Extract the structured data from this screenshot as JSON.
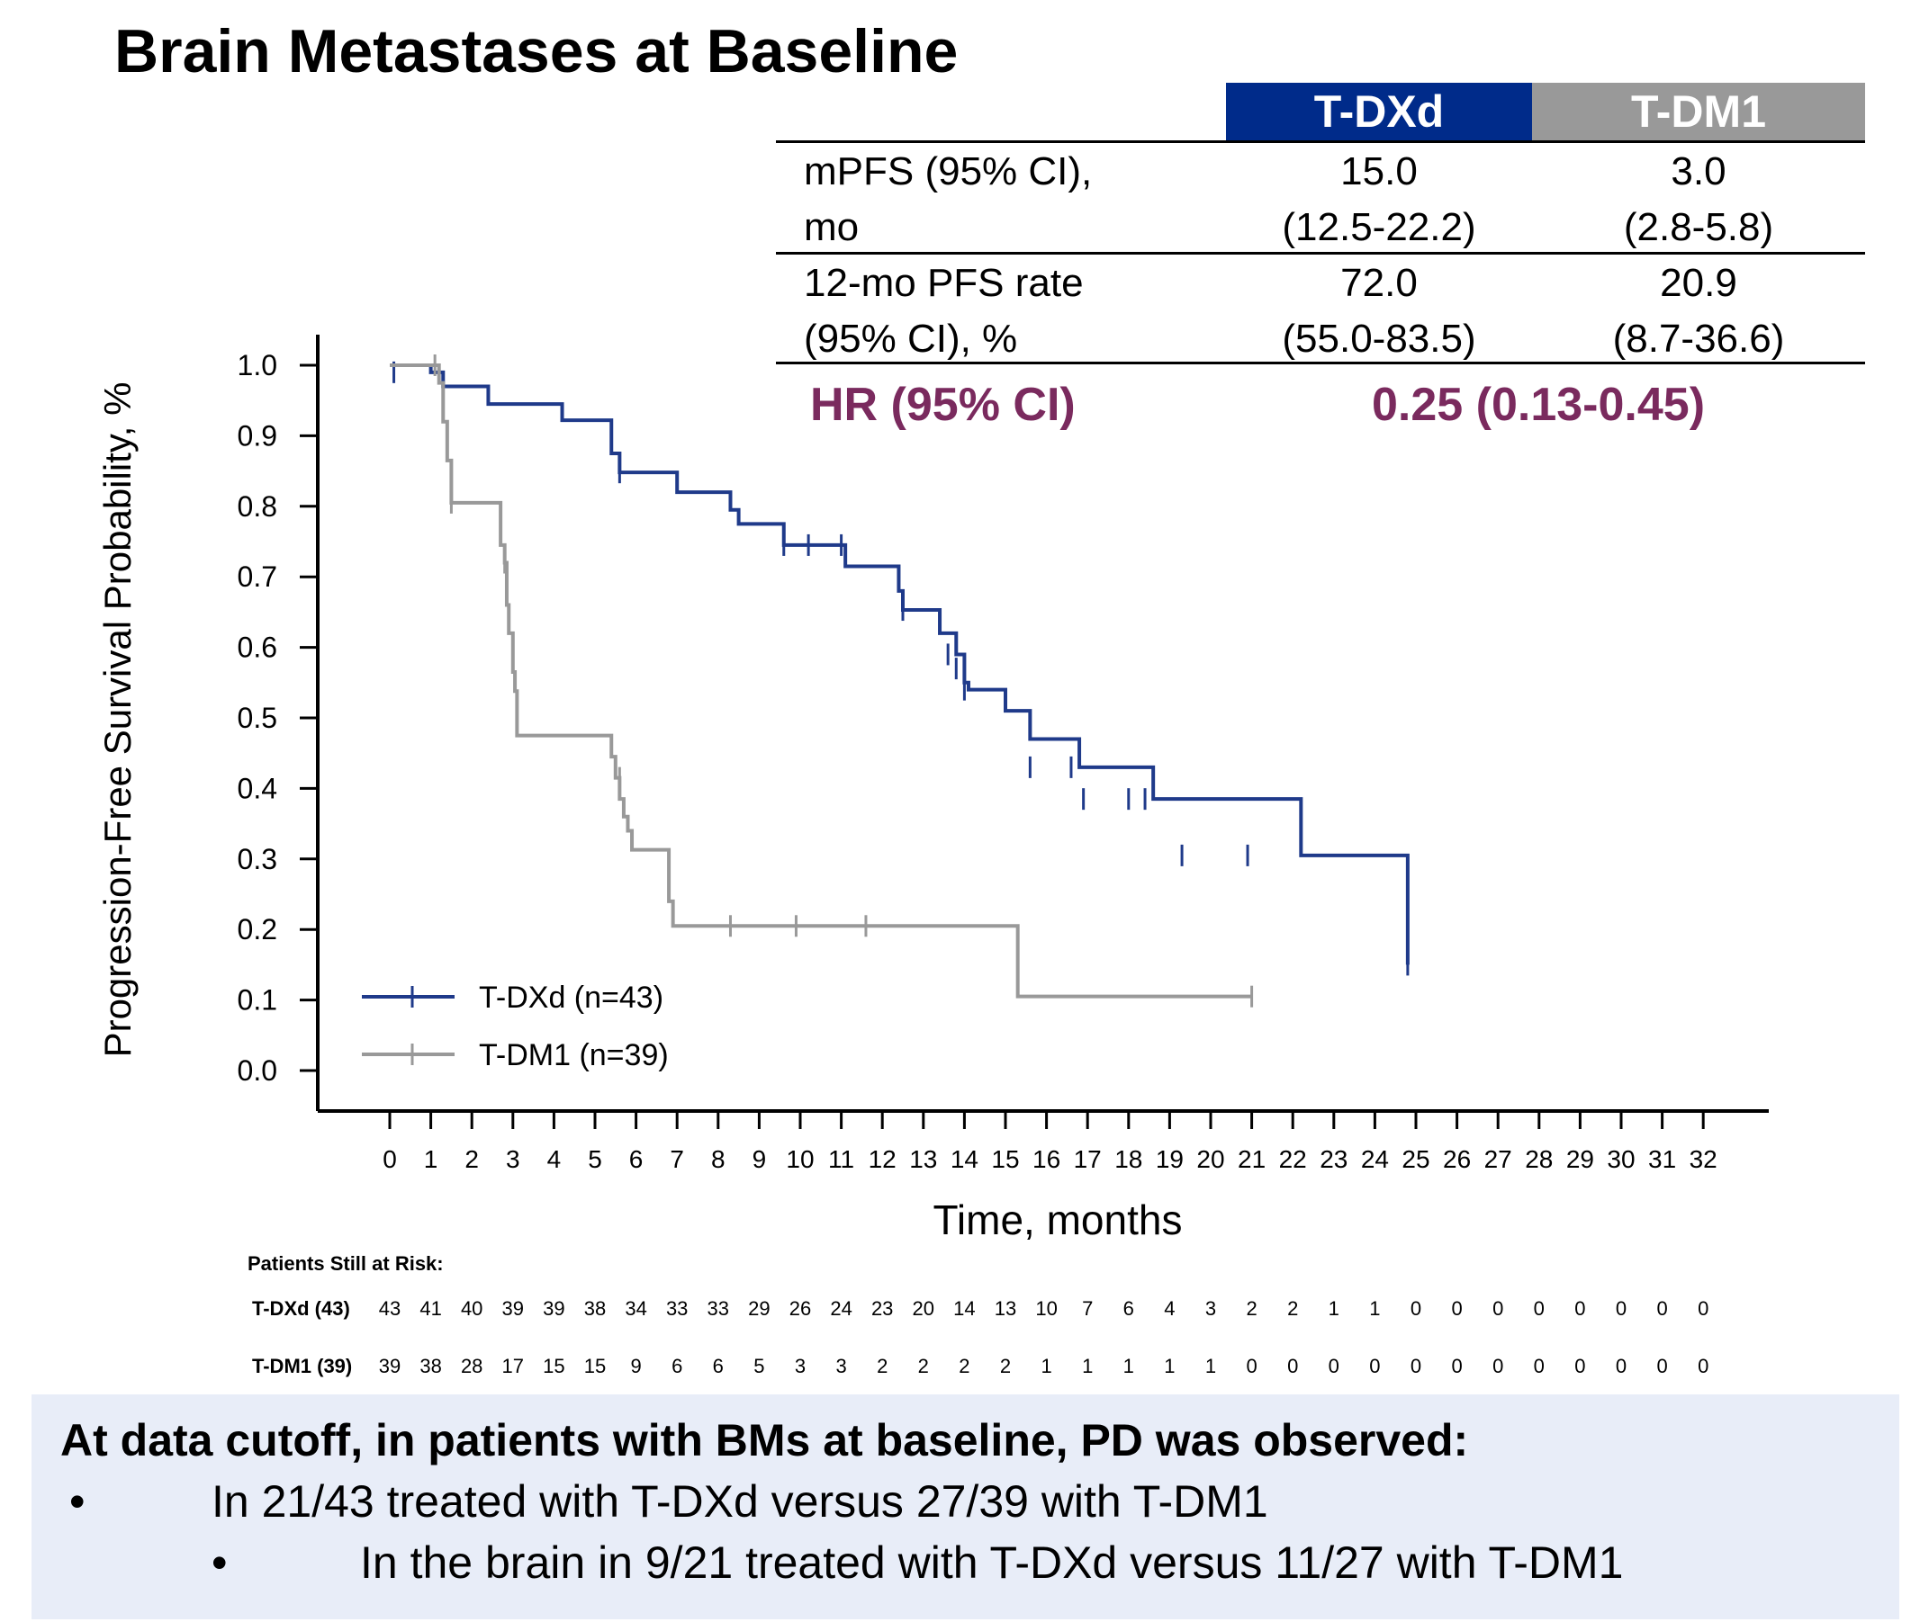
{
  "title": "Brain Metastases at Baseline",
  "table": {
    "headers": [
      {
        "label": "T-DXd",
        "color": "#002b8a"
      },
      {
        "label": "T-DM1",
        "color": "#999999"
      }
    ],
    "rows": [
      {
        "label": [
          "mPFS (95% CI),",
          "mo"
        ],
        "tdxd": [
          "15.0",
          "(12.5-22.2)"
        ],
        "tdm1": [
          "3.0",
          "(2.8-5.8)"
        ]
      },
      {
        "label": [
          "12-mo PFS rate",
          "(95% CI), %"
        ],
        "tdxd": [
          "72.0",
          "(55.0-83.5)"
        ],
        "tdm1": [
          "20.9",
          "(8.7-36.6)"
        ]
      }
    ],
    "hr_label": "HR (95% CI)",
    "hr_value": "0.25 (0.13-0.45)",
    "hr_color": "#7a2a5e"
  },
  "chart_data": {
    "type": "line",
    "title": "",
    "xlabel": "Time, months",
    "ylabel": "Progression-Free Survival Probability, %",
    "xlim": [
      0,
      32
    ],
    "ylim": [
      0,
      1.0
    ],
    "xticks": [
      0,
      1,
      2,
      3,
      4,
      5,
      6,
      7,
      8,
      9,
      10,
      11,
      12,
      13,
      14,
      15,
      16,
      17,
      18,
      19,
      20,
      21,
      22,
      23,
      24,
      25,
      26,
      27,
      28,
      29,
      30,
      31,
      32
    ],
    "yticks": [
      "0.0",
      "0.1",
      "0.2",
      "0.3",
      "0.4",
      "0.5",
      "0.6",
      "0.7",
      "0.8",
      "0.9",
      "1.0"
    ],
    "legend_position": "bottom-left",
    "series": [
      {
        "name": "T-DXd (n=43)",
        "color": "#1f3a8a",
        "step_x": [
          0,
          1.0,
          1.3,
          2.4,
          4.2,
          5.4,
          5.6,
          7.0,
          8.3,
          8.5,
          9.6,
          11.1,
          12.4,
          12.5,
          13.4,
          13.8,
          14.0,
          14.1,
          15.0,
          15.6,
          16.8,
          18.6,
          22.2,
          24.8
        ],
        "step_y": [
          1.0,
          0.99,
          0.97,
          0.945,
          0.922,
          0.875,
          0.848,
          0.82,
          0.795,
          0.775,
          0.745,
          0.715,
          0.68,
          0.653,
          0.62,
          0.59,
          0.55,
          0.54,
          0.51,
          0.47,
          0.43,
          0.385,
          0.305,
          0.15
        ],
        "censor_x": [
          0.1,
          5.6,
          9.6,
          10.2,
          11.0,
          12.5,
          13.6,
          13.8,
          14.0,
          15.6,
          16.6,
          16.9,
          18.0,
          18.4,
          19.3,
          20.9,
          24.8
        ],
        "censor_y": [
          0.99,
          0.848,
          0.745,
          0.745,
          0.745,
          0.653,
          0.59,
          0.57,
          0.54,
          0.43,
          0.43,
          0.385,
          0.385,
          0.385,
          0.305,
          0.305,
          0.15
        ]
      },
      {
        "name": "T-DM1 (n=39)",
        "color": "#999999",
        "step_x": [
          0,
          1.2,
          1.3,
          1.4,
          1.5,
          2.7,
          2.8,
          2.85,
          2.9,
          3.0,
          3.05,
          3.1,
          5.4,
          5.5,
          5.6,
          5.7,
          5.8,
          5.9,
          6.8,
          6.9,
          15.3,
          21.0
        ],
        "step_y": [
          1.0,
          0.975,
          0.92,
          0.865,
          0.805,
          0.745,
          0.72,
          0.66,
          0.62,
          0.565,
          0.538,
          0.475,
          0.445,
          0.415,
          0.385,
          0.36,
          0.34,
          0.313,
          0.24,
          0.205,
          0.105,
          0.105
        ],
        "censor_x": [
          1.1,
          1.5,
          2.8,
          5.6,
          8.3,
          9.9,
          11.6,
          21.0
        ],
        "censor_y": [
          1.0,
          0.805,
          0.72,
          0.415,
          0.205,
          0.205,
          0.205,
          0.105
        ]
      }
    ],
    "at_risk": {
      "title": "Patients Still at Risk:",
      "rows": [
        {
          "label": "T-DXd (43)",
          "values": [
            43,
            41,
            40,
            39,
            39,
            38,
            34,
            33,
            33,
            29,
            26,
            24,
            23,
            20,
            14,
            13,
            10,
            7,
            6,
            4,
            3,
            2,
            2,
            1,
            1,
            0,
            0,
            0,
            0,
            0,
            0,
            0,
            0
          ]
        },
        {
          "label": "T-DM1 (39)",
          "values": [
            39,
            38,
            28,
            17,
            15,
            15,
            9,
            6,
            6,
            5,
            3,
            3,
            2,
            2,
            2,
            2,
            1,
            1,
            1,
            1,
            1,
            0,
            0,
            0,
            0,
            0,
            0,
            0,
            0,
            0,
            0,
            0,
            0
          ]
        }
      ]
    }
  },
  "summary": {
    "heading": "At data cutoff, in patients with BMs at baseline, PD was observed:",
    "bullet_symbol": "•",
    "bullet1": "In 21/43 treated with T-DXd versus 27/39 with T-DM1",
    "bullet2": "In the brain in 9/21 treated with T-DXd versus 11/27 with T-DM1"
  }
}
